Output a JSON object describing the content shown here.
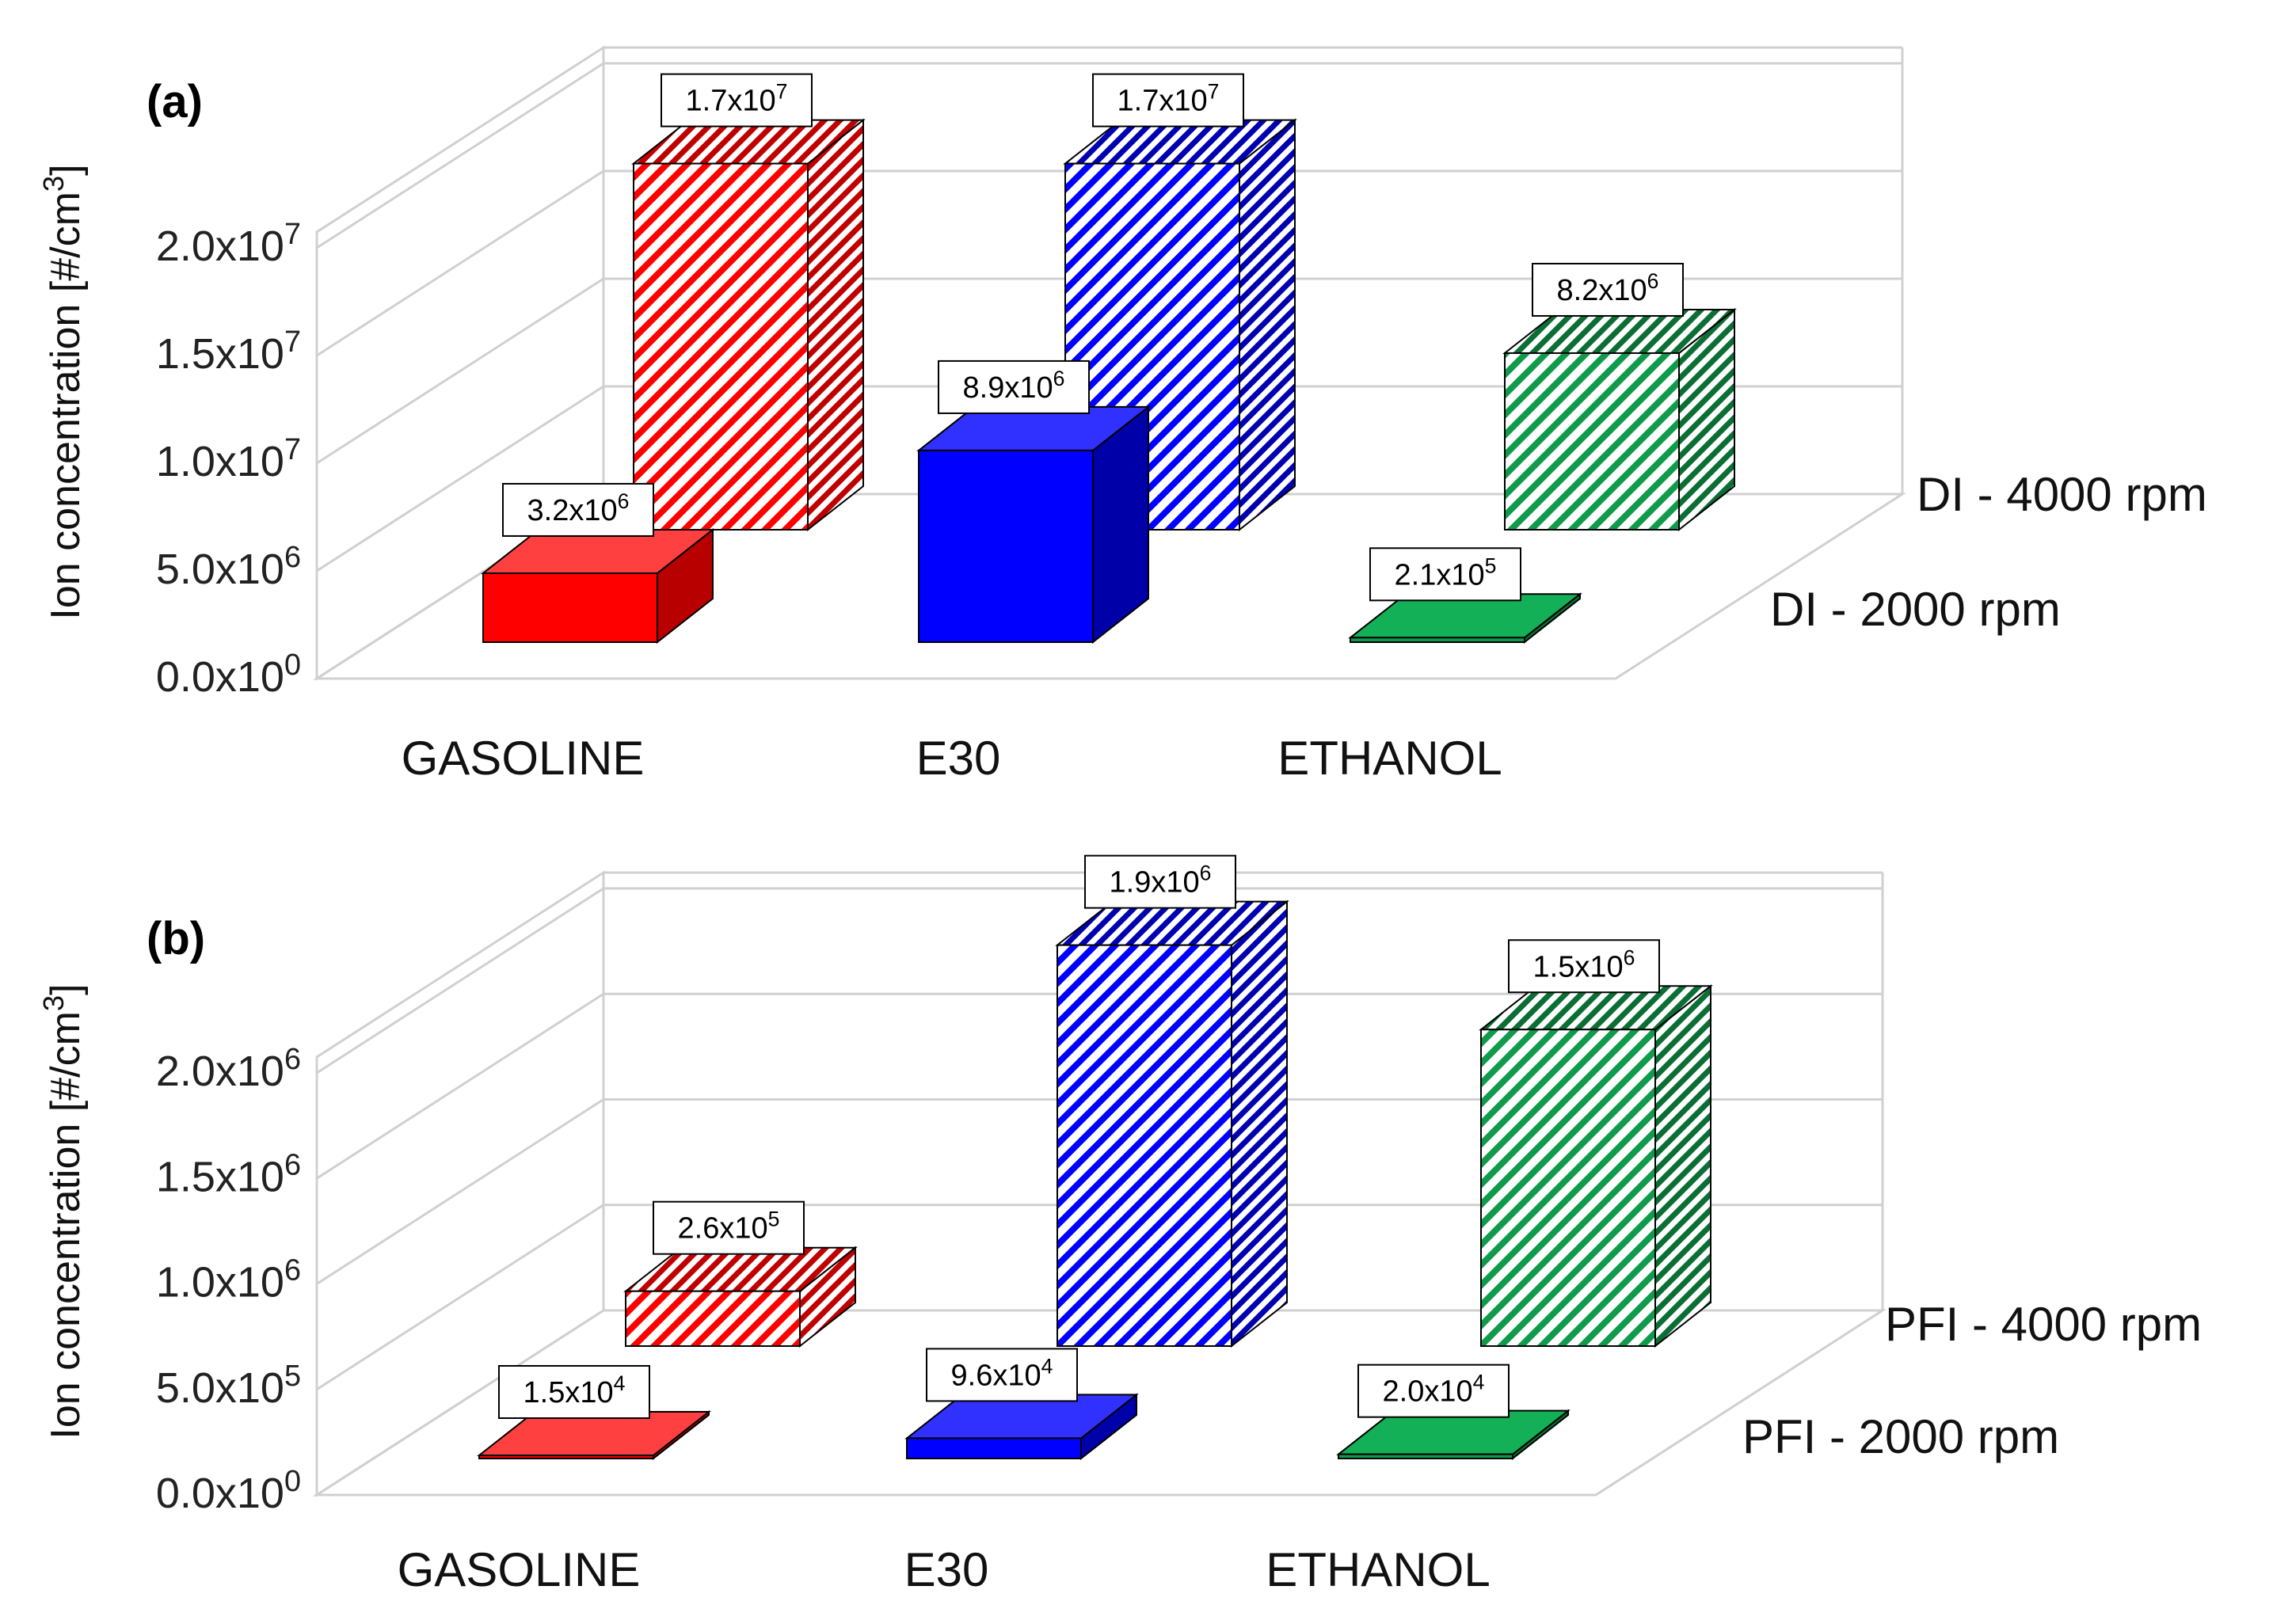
{
  "chart_data": [
    {
      "type": "bar",
      "panel": "(a)",
      "ylabel": "Ion concentration [#/cm³]",
      "categories": [
        "GASOLINE",
        "E30",
        "ETHANOL"
      ],
      "yticks": [
        "0.0x10⁰",
        "5.0x10⁶",
        "1.0x10⁷",
        "1.5x10⁷",
        "2.0x10⁷"
      ],
      "ylim": [
        0,
        20000000
      ],
      "series": [
        {
          "name": "DI - 2000 rpm",
          "values": [
            3200000,
            8900000,
            210000
          ],
          "labels": [
            "3.2x10⁶",
            "8.9x10⁶",
            "2.1x10⁵"
          ],
          "fill": "solid"
        },
        {
          "name": "DI - 4000 rpm",
          "values": [
            17000000,
            17000000,
            8200000
          ],
          "labels": [
            "1.7x10⁷",
            "1.7x10⁷",
            "8.2x10⁶"
          ],
          "fill": "hatched"
        }
      ]
    },
    {
      "type": "bar",
      "panel": "(b)",
      "ylabel": "Ion concentration [#/cm³]",
      "categories": [
        "GASOLINE",
        "E30",
        "ETHANOL"
      ],
      "yticks": [
        "0.0x10⁰",
        "5.0x10⁵",
        "1.0x10⁶",
        "1.5x10⁶",
        "2.0x10⁶"
      ],
      "ylim": [
        0,
        2000000
      ],
      "series": [
        {
          "name": "PFI - 2000 rpm",
          "values": [
            15000,
            96000,
            20000
          ],
          "labels": [
            "1.5x10⁴",
            "9.6x10⁴",
            "2.0x10⁴"
          ],
          "fill": "solid"
        },
        {
          "name": "PFI - 4000 rpm",
          "values": [
            260000,
            1900000,
            1500000
          ],
          "labels": [
            "2.6x10⁵",
            "1.9x10⁶",
            "1.5x10⁶"
          ],
          "fill": "hatched"
        }
      ]
    }
  ],
  "colors": {
    "red": {
      "front": "#ff0000",
      "side": "#b80000",
      "top": "#ff4040"
    },
    "blue": {
      "front": "#0000ff",
      "side": "#0000a8",
      "top": "#3030ff"
    },
    "green": {
      "front": "#0f9b4b",
      "side": "#0a6e35",
      "top": "#14b058"
    },
    "grid": "#d0d0d0"
  }
}
